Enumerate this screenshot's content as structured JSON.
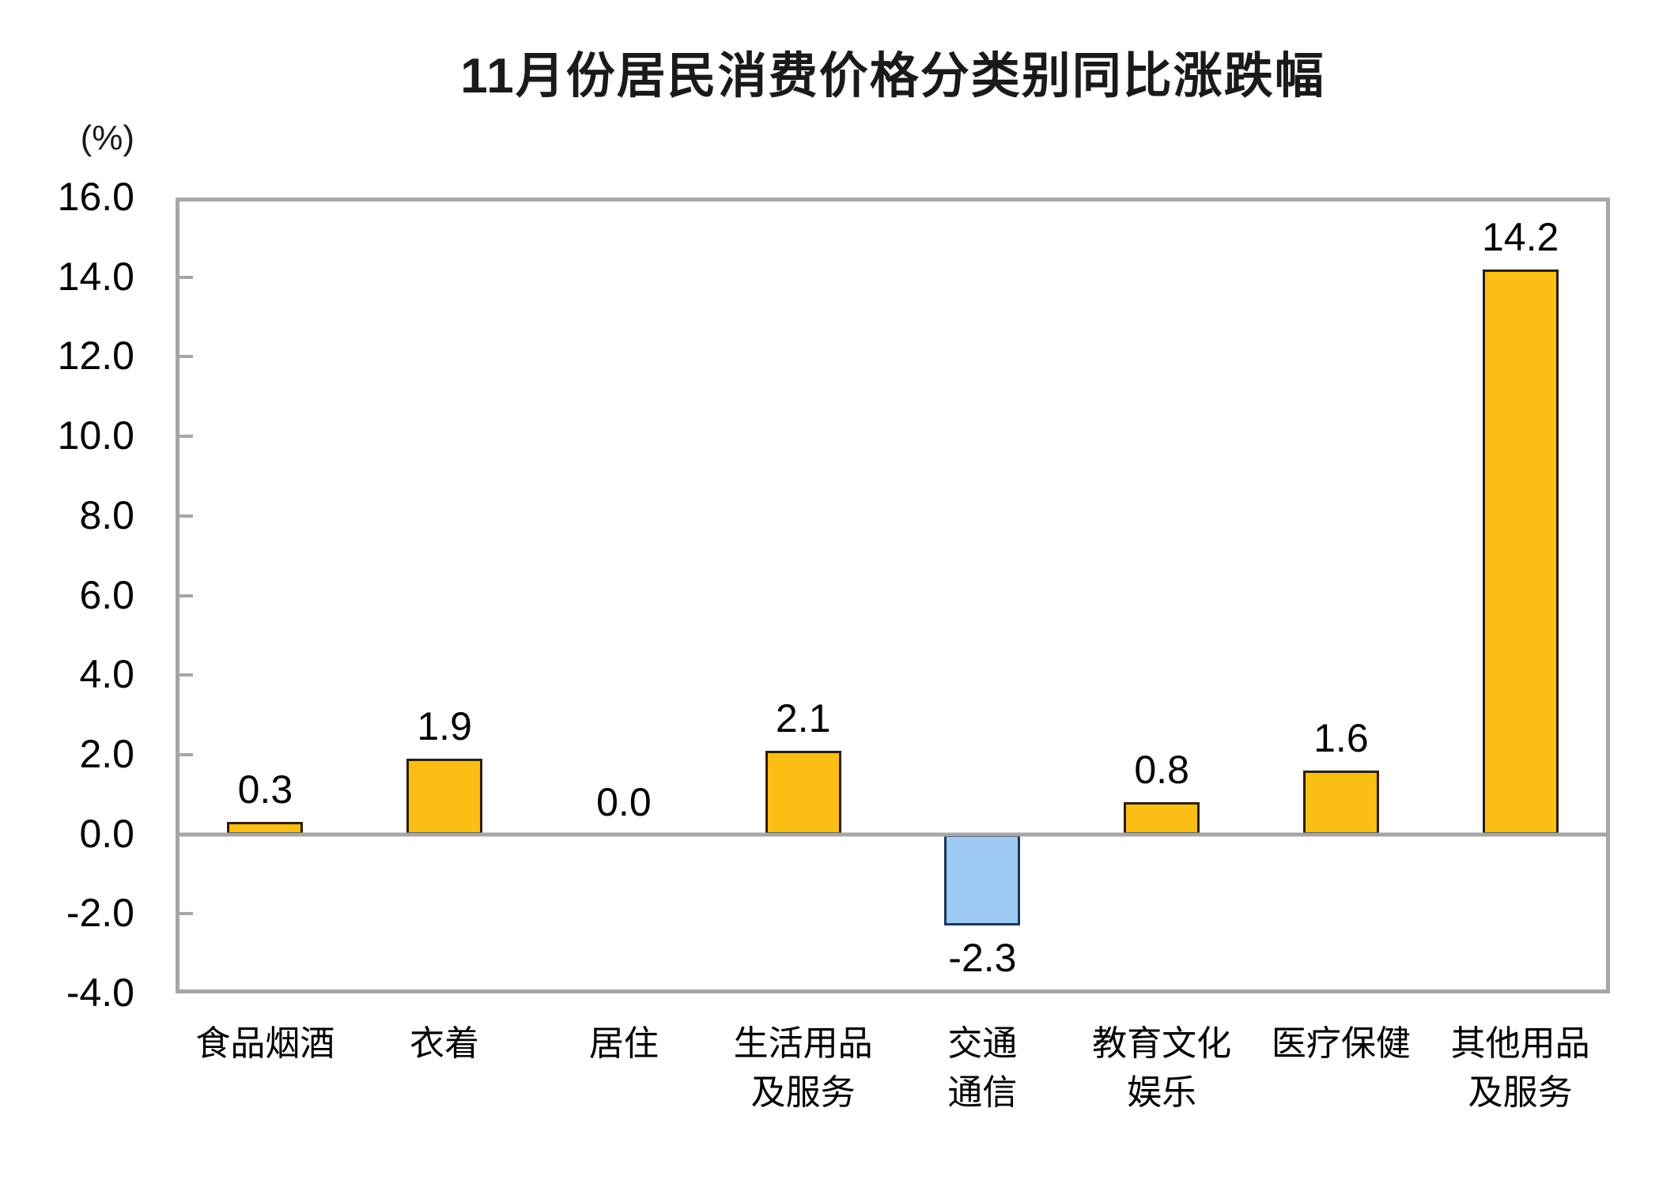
{
  "title": "11月份居民消费价格分类别同比涨跌幅",
  "y_axis": {
    "unit_label": "(%)",
    "tick_labels": [
      "16.0",
      "14.0",
      "12.0",
      "10.0",
      "8.0",
      "6.0",
      "4.0",
      "2.0",
      "0.0",
      "-2.0",
      "-4.0"
    ]
  },
  "colors": {
    "positive_fill": "#FBBE14",
    "positive_border": "#2B2008",
    "negative_fill": "#9FCAF4",
    "negative_border": "#17375E",
    "axis_gray": "#A6A6A6",
    "text": "#000000"
  },
  "chart_data": {
    "type": "bar",
    "title": "11月份居民消费价格分类别同比涨跌幅",
    "xlabel": "",
    "ylabel": "(%)",
    "ylim": [
      -4.0,
      16.0
    ],
    "ytick_step": 2.0,
    "grid": false,
    "legend": false,
    "categories": [
      "食品烟酒",
      "衣着",
      "居住",
      "生活用品及服务",
      "交通通信",
      "教育文化娱乐",
      "医疗保健",
      "其他用品及服务"
    ],
    "category_label_lines": [
      [
        "食品烟酒"
      ],
      [
        "衣着"
      ],
      [
        "居住"
      ],
      [
        "生活用品",
        "及服务"
      ],
      [
        "交通",
        "通信"
      ],
      [
        "教育文化",
        "娱乐"
      ],
      [
        "医疗保健"
      ],
      [
        "其他用品",
        "及服务"
      ]
    ],
    "values": [
      0.3,
      1.9,
      0.0,
      2.1,
      -2.3,
      0.8,
      1.6,
      14.2
    ],
    "data_labels": [
      "0.3",
      "1.9",
      "0.0",
      "2.1",
      "-2.3",
      "0.8",
      "1.6",
      "14.2"
    ],
    "bar_color_style": [
      "positive",
      "positive",
      "positive",
      "positive",
      "negative",
      "positive",
      "positive",
      "positive"
    ]
  }
}
